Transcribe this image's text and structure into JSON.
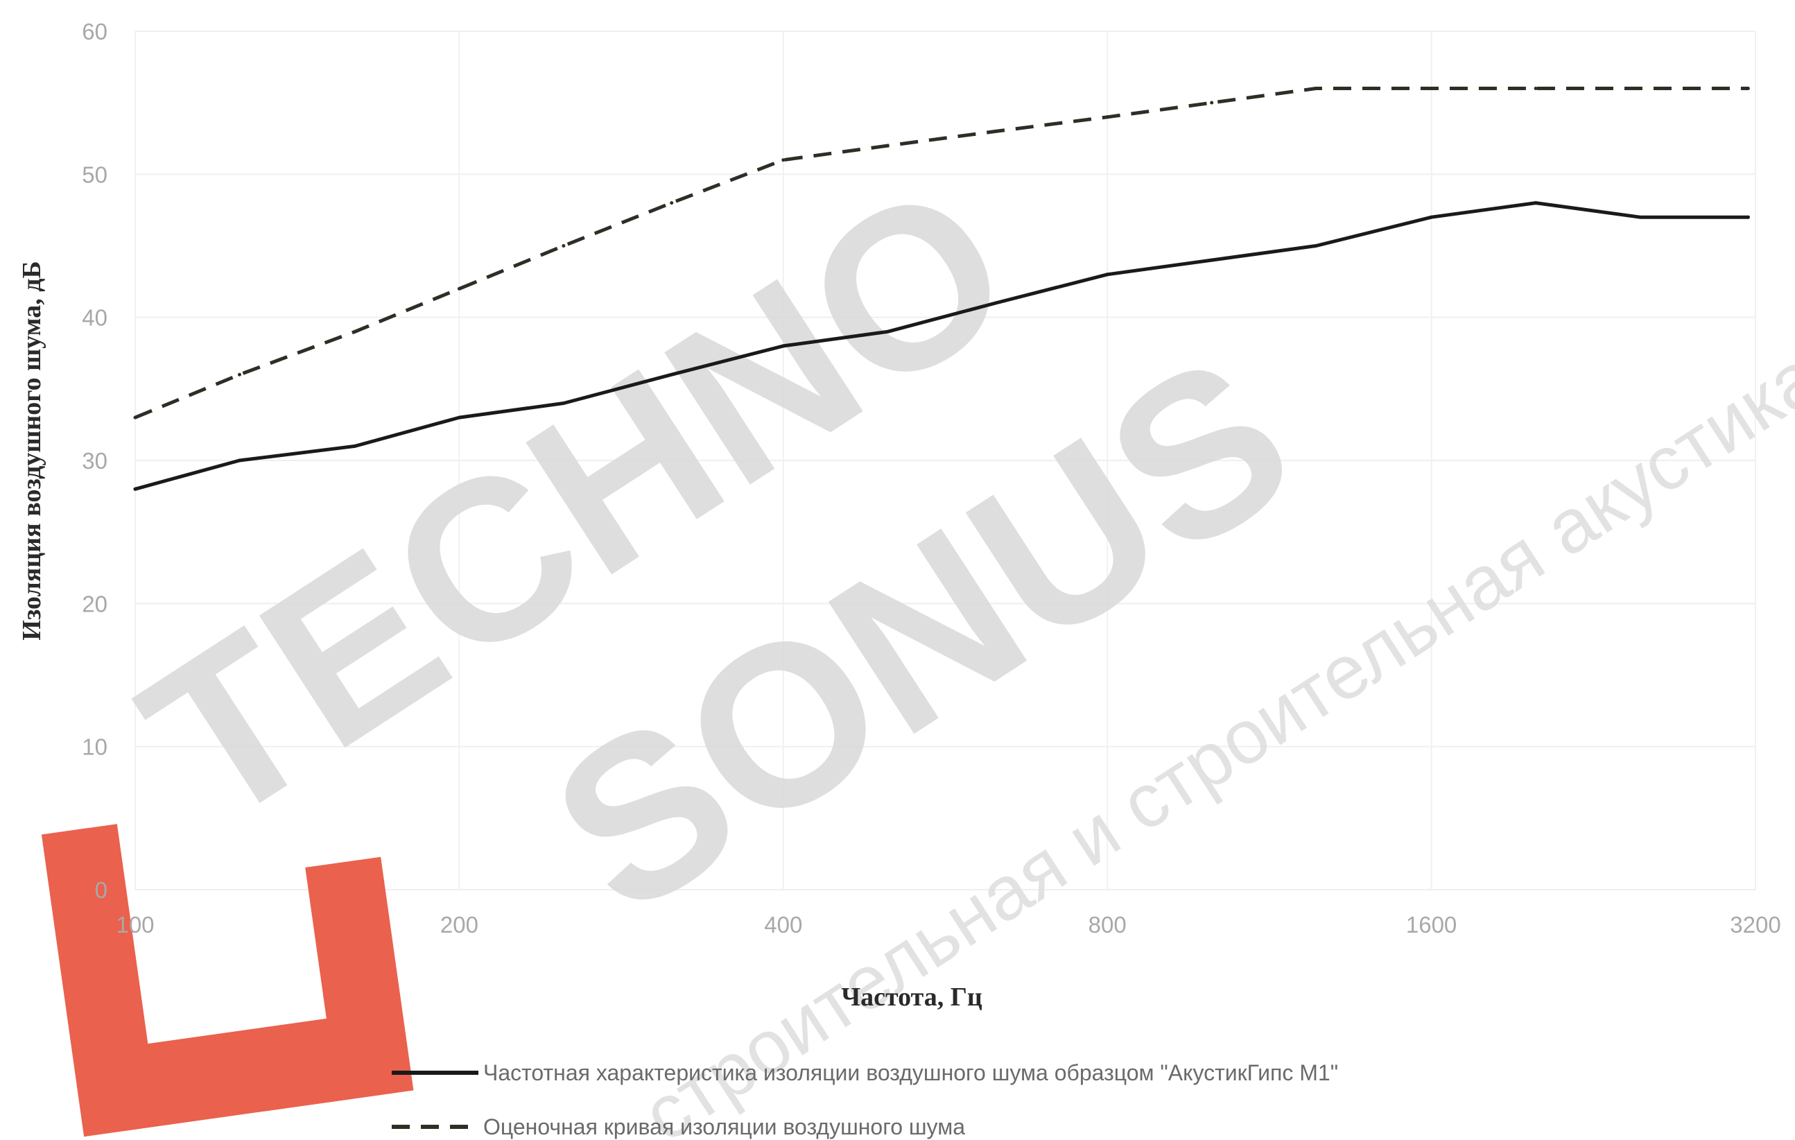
{
  "chart_data": {
    "type": "line",
    "title": "",
    "xlabel": "Частота, Гц",
    "ylabel": "Изоляция воздушного шума, дБ",
    "x_scale": "log2",
    "xlim": [
      100,
      3200
    ],
    "ylim": [
      0,
      60
    ],
    "grid": true,
    "x_ticks": [
      100,
      200,
      400,
      800,
      1600,
      3200
    ],
    "y_ticks": [
      0,
      10,
      20,
      30,
      40,
      50,
      60
    ],
    "legend_position": "bottom",
    "x": [
      100,
      125,
      160,
      200,
      250,
      315,
      400,
      500,
      630,
      800,
      1000,
      1250,
      1600,
      2000,
      2500,
      3150
    ],
    "series": [
      {
        "name": "Частотная характеристика изоляции воздушного шума образцом \"АкустикГипс М1\"",
        "style": "solid",
        "color": "#1a1a1a",
        "values": [
          28,
          30,
          31,
          33,
          34,
          36,
          38,
          39,
          41,
          43,
          44,
          45,
          47,
          48,
          47,
          47
        ]
      },
      {
        "name": "Оценочная кривая изоляции воздушного шума",
        "style": "dashed",
        "color": "#2e2e26",
        "values": [
          33,
          36,
          39,
          42,
          45,
          48,
          51,
          52,
          53,
          54,
          55,
          56,
          56,
          56,
          56,
          56
        ]
      }
    ]
  },
  "watermark": {
    "line1": "TECHNO",
    "line2": "SONUS",
    "tagline": "строительная и строительная акустика",
    "logo_color": "#e8503a"
  }
}
